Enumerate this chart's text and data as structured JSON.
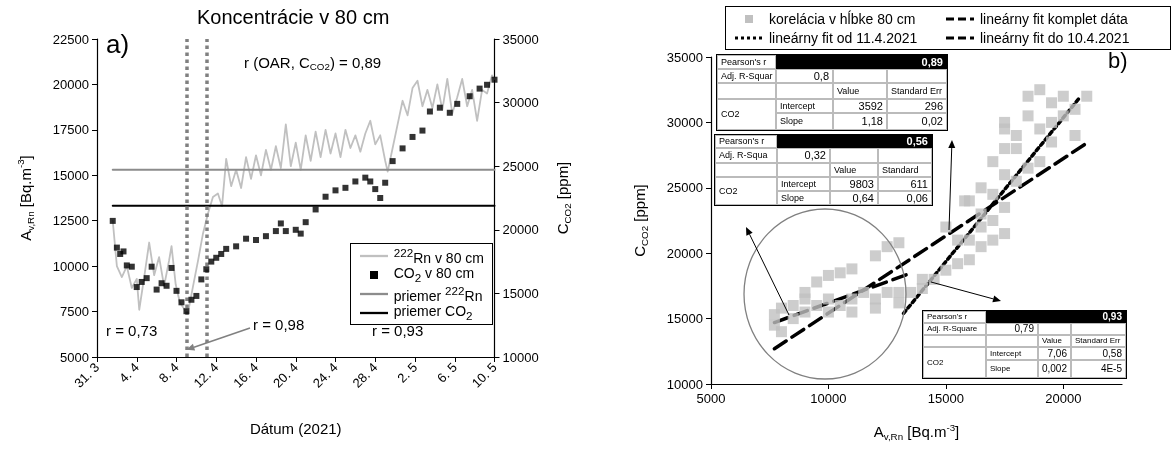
{
  "chart_data": [
    {
      "type": "line",
      "title": "Koncentrácie v 80 cm",
      "xlabel": "Dátum (2021)",
      "ylabel": "A$_{v,Rn}$ [Bq.m$^{-3}$]",
      "y2label": "C$_{CO2}$ [ppm]",
      "xlim": [
        "2021-03-31",
        "2021-05-10"
      ],
      "xticks": [
        {
          "value": "2021-03-31",
          "label": "31. 3"
        },
        {
          "value": "2021-04-04",
          "label": "4. 4"
        },
        {
          "value": "2021-04-08",
          "label": "8. 4"
        },
        {
          "value": "2021-04-12",
          "label": "12. 4"
        },
        {
          "value": "2021-04-16",
          "label": "16. 4"
        },
        {
          "value": "2021-04-20",
          "label": "20. 4"
        },
        {
          "value": "2021-04-24",
          "label": "24. 4"
        },
        {
          "value": "2021-04-28",
          "label": "28. 4"
        },
        {
          "value": "2021-05-02",
          "label": "2. 5"
        },
        {
          "value": "2021-05-06",
          "label": "6. 5"
        },
        {
          "value": "2021-05-10",
          "label": "10. 5"
        }
      ],
      "ylim": [
        5000,
        22500
      ],
      "yticks": [
        5000,
        7500,
        10000,
        12500,
        15000,
        17500,
        20000,
        22500
      ],
      "y2lim": [
        10000,
        35000
      ],
      "y2ticks": [
        10000,
        15000,
        20000,
        25000,
        30000,
        35000
      ],
      "grid": false,
      "legend": "bottom right",
      "ref_lines": [
        {
          "axis": "x",
          "value": "2021-04-09",
          "color": "#808080",
          "line_style": "dotted"
        },
        {
          "axis": "x",
          "value": "2021-04-11",
          "color": "#808080",
          "line_style": "dotted"
        }
      ],
      "annotations": [
        "a)",
        "r (OAR, C$_{CO2}$) = 0,89",
        {
          "text": "r = 0,98",
          "x": "2021-04-09",
          "y": 5400
        },
        "r = 0,73",
        "r = 0,93"
      ],
      "series": [
        {
          "name": "$^{222}$Rn v 80 cm",
          "color": "#c0c0c0",
          "marker": "none",
          "x": [
            "2021-04-01T14:00",
            "2021-04-02T00:00",
            "2021-04-02T12:00",
            "2021-04-03T00:00",
            "2021-04-03T12:00",
            "2021-04-04T00:00",
            "2021-04-04T06:00",
            "2021-04-04T18:00",
            "2021-04-05T06:00",
            "2021-04-05T18:00",
            "2021-04-06T06:00",
            "2021-04-06T18:00",
            "2021-04-07T06:00",
            "2021-04-07T12:00",
            "2021-04-07T22:00",
            "2021-04-08T08:00",
            "2021-04-08T20:00",
            "2021-04-09T06:00",
            "2021-04-09T16:00",
            "2021-04-10T04:00",
            "2021-04-10T16:00",
            "2021-04-11T04:00",
            "2021-04-11T16:00",
            "2021-04-12T04:00",
            "2021-04-12T14:00",
            "2021-04-13T00:00",
            "2021-04-13T12:00",
            "2021-04-14T00:00",
            "2021-04-14T12:00",
            "2021-04-15T00:00",
            "2021-04-15T12:00",
            "2021-04-16T00:00",
            "2021-04-16T12:00",
            "2021-04-17T00:00",
            "2021-04-17T12:00",
            "2021-04-18T00:00",
            "2021-04-18T12:00",
            "2021-04-19T00:00",
            "2021-04-19T12:00",
            "2021-04-20T00:00",
            "2021-04-20T12:00",
            "2021-04-21T00:00",
            "2021-04-21T12:00",
            "2021-04-22T00:00",
            "2021-04-22T12:00",
            "2021-04-23T00:00",
            "2021-04-23T12:00",
            "2021-04-24T00:00",
            "2021-04-24T12:00",
            "2021-04-25T00:00",
            "2021-04-25T12:00",
            "2021-04-26T00:00",
            "2021-04-26T12:00",
            "2021-04-27T00:00",
            "2021-04-27T12:00",
            "2021-04-28T00:00",
            "2021-04-28T12:00",
            "2021-04-29T00:00",
            "2021-04-29T06:00",
            "2021-04-29T18:00",
            "2021-04-30T06:00",
            "2021-04-30T18:00",
            "2021-05-01T06:00",
            "2021-05-01T18:00",
            "2021-05-02T06:00",
            "2021-05-02T18:00",
            "2021-05-03T06:00",
            "2021-05-03T18:00",
            "2021-05-04T06:00",
            "2021-05-04T18:00",
            "2021-05-05T06:00",
            "2021-05-05T18:00",
            "2021-05-06T06:00",
            "2021-05-06T18:00",
            "2021-05-07T06:00",
            "2021-05-07T18:00",
            "2021-05-08T06:00",
            "2021-05-08T18:00",
            "2021-05-09T06:00",
            "2021-05-09T18:00",
            "2021-05-10T00:00"
          ],
          "values": [
            12500,
            10000,
            9400,
            10000,
            8800,
            9300,
            7600,
            9400,
            11300,
            9500,
            10500,
            8900,
            10300,
            11100,
            9000,
            8000,
            7600,
            7700,
            8900,
            10300,
            11800,
            12900,
            13800,
            14000,
            13300,
            15900,
            14400,
            15300,
            14300,
            16000,
            14800,
            16100,
            15000,
            16400,
            15300,
            16600,
            15400,
            17800,
            15500,
            16800,
            15300,
            17200,
            15800,
            17400,
            16000,
            17500,
            16200,
            17300,
            16000,
            17500,
            16500,
            17200,
            16300,
            17300,
            18000,
            16700,
            17200,
            15800,
            15200,
            16500,
            17800,
            19100,
            18300,
            19800,
            20200,
            18800,
            19700,
            18700,
            20000,
            18600,
            20300,
            18400,
            19300,
            20300,
            18800,
            19700,
            18000,
            19700,
            19500,
            20500,
            20300
          ]
        },
        {
          "name": "CO$_{2}$ v 80 cm",
          "type": "scatter",
          "color": "#000000",
          "marker": "square",
          "axis": "y2",
          "x": [
            "2021-04-01T14:00",
            "2021-04-02T00:00",
            "2021-04-02T08:00",
            "2021-04-02T16:00",
            "2021-04-03T00:00",
            "2021-04-03T12:00",
            "2021-04-04T00:00",
            "2021-04-04T12:00",
            "2021-04-05T00:00",
            "2021-04-05T12:00",
            "2021-04-06T00:00",
            "2021-04-06T12:00",
            "2021-04-07T00:00",
            "2021-04-07T12:00",
            "2021-04-08T00:00",
            "2021-04-08T12:00",
            "2021-04-09T00:00",
            "2021-04-09T12:00",
            "2021-04-10T00:00",
            "2021-04-10T12:00",
            "2021-04-11T00:00",
            "2021-04-11T12:00",
            "2021-04-12T00:00",
            "2021-04-12T12:00",
            "2021-04-13T00:00",
            "2021-04-14T00:00",
            "2021-04-15T00:00",
            "2021-04-16T00:00",
            "2021-04-17T00:00",
            "2021-04-18T00:00",
            "2021-04-18T12:00",
            "2021-04-19T00:00",
            "2021-04-20T00:00",
            "2021-04-20T12:00",
            "2021-04-21T00:00",
            "2021-04-22T00:00",
            "2021-04-23T00:00",
            "2021-04-24T00:00",
            "2021-04-25T00:00",
            "2021-04-26T00:00",
            "2021-04-27T00:00",
            "2021-04-27T12:00",
            "2021-04-28T00:00",
            "2021-04-28T12:00",
            "2021-04-29T00:00",
            "2021-04-29T18:00",
            "2021-04-30T18:00",
            "2021-05-01T18:00",
            "2021-05-02T18:00",
            "2021-05-03T12:00",
            "2021-05-04T12:00",
            "2021-05-05T12:00",
            "2021-05-06T06:00",
            "2021-05-07T12:00",
            "2021-05-08T12:00",
            "2021-05-09T06:00",
            "2021-05-10T00:00"
          ],
          "values": [
            20700,
            18600,
            18100,
            18300,
            17200,
            17100,
            15500,
            15900,
            16200,
            17100,
            15300,
            15800,
            15600,
            17000,
            15200,
            14300,
            13600,
            14500,
            14800,
            16100,
            16900,
            17500,
            17800,
            18100,
            18500,
            18700,
            19300,
            19200,
            19500,
            19900,
            20500,
            19900,
            20000,
            19700,
            20600,
            21600,
            22600,
            23100,
            23300,
            23800,
            24100,
            23800,
            23200,
            22500,
            23700,
            25400,
            26400,
            27300,
            27800,
            29300,
            29600,
            29200,
            29900,
            30500,
            31100,
            31400,
            31800
          ]
        },
        {
          "name": "priemer $^{222}$Rn",
          "color": "#8c8c8c",
          "marker": "none",
          "x": [
            "2021-04-01T14:00",
            "2021-05-10"
          ],
          "values": [
            15300,
            15300
          ]
        },
        {
          "name": "priemer CO$_{2}$",
          "color": "#000000",
          "marker": "none",
          "axis": "y2",
          "x": [
            "2021-04-01T14:00",
            "2021-05-10"
          ],
          "values": [
            21900,
            21900
          ]
        }
      ]
    },
    {
      "type": "scatter",
      "xlabel": "A$_{v,Rn}$ [Bq.m$^{-3}$]",
      "ylabel": "C$_{CO2}$ [ppm]",
      "xlim": [
        5000,
        22500
      ],
      "xticks": [
        5000,
        10000,
        15000,
        20000
      ],
      "ylim": [
        10000,
        35000
      ],
      "yticks": [
        10000,
        15000,
        20000,
        25000,
        30000,
        35000
      ],
      "grid": false,
      "legend": "top",
      "marker": "square",
      "annotations": [
        "b)",
        "Pearson's r",
        "0,89",
        "Adj. R-Squar",
        "0,8",
        "Value",
        "Standard Err",
        "CO2",
        "Intercept",
        "3592",
        "296",
        "Slope",
        "1,18",
        "0,02",
        "Pearson's r",
        "0,56",
        "Adj. R-Squa",
        "0,32",
        "Value",
        "Standard",
        "CO2",
        "Intercept",
        "9803",
        "611",
        "Slope",
        "0,64",
        "0,06",
        "Pearson's r",
        "0,93",
        "Adj. R-Square",
        "0,79",
        "Value",
        "Standard Err",
        "CO2",
        "Intercept",
        "7,06",
        "0,58",
        "Slope",
        "0,002",
        "4E-5"
      ],
      "series": [
        {
          "name": "korelácia v hĺbke 80 cm",
          "color": "#c0c0c0",
          "x": [
            7700,
            7700,
            8000,
            8500,
            9000,
            9500,
            9000,
            9500,
            10000,
            10500,
            11000,
            12000,
            12500,
            13000,
            10000,
            10500,
            11000,
            11500,
            12000,
            12500,
            13000,
            13500,
            9000,
            10000,
            8000,
            8500,
            11000,
            12000,
            13000,
            14000,
            14500,
            15000,
            15500,
            16000,
            16500,
            17000,
            17500,
            16000,
            16500,
            17000,
            17500,
            16500,
            15500,
            14000,
            16000,
            16500,
            17000,
            17500,
            17000,
            18000,
            18500,
            19000,
            17500,
            18000,
            19000,
            19500,
            20000,
            20500,
            21000,
            20000,
            18500,
            17500,
            18000,
            19500,
            20500,
            18500,
            19000,
            19500,
            17500,
            15800,
            15000
          ],
          "values": [
            14500,
            15300,
            14000,
            15000,
            15500,
            16000,
            17000,
            17800,
            18300,
            18500,
            18800,
            19800,
            20500,
            20800,
            16500,
            16000,
            16500,
            17000,
            16500,
            17000,
            17000,
            17000,
            16500,
            15500,
            15800,
            16000,
            15500,
            15800,
            16200,
            17300,
            18000,
            18700,
            19200,
            19500,
            20500,
            21000,
            21500,
            21000,
            22000,
            22500,
            23500,
            23000,
            21000,
            18000,
            24000,
            25000,
            24500,
            26000,
            27000,
            25500,
            26500,
            27000,
            28000,
            29000,
            29500,
            30000,
            30500,
            31000,
            32000,
            32000,
            30500,
            30000,
            28000,
            28500,
            29000,
            32000,
            32500,
            31500,
            29500,
            24000,
            22000
          ]
        },
        {
          "name": "lineárny fit komplet dáta",
          "type": "line",
          "color": "#000000",
          "marker": "none",
          "line_style": "dashed",
          "x": [
            7700,
            20900
          ],
          "values": [
            12700,
            28300
          ]
        },
        {
          "name": "lineárny fit od 11.4.2021",
          "type": "line",
          "color": "#000000",
          "marker": "none",
          "line_style": "dotted",
          "x": [
            13200,
            20700
          ],
          "values": [
            15400,
            31900
          ]
        },
        {
          "name": "lineárny fit do 10.4.2021",
          "type": "line",
          "color": "#000000",
          "marker": "none",
          "line_style": "dashed",
          "x": [
            7700,
            13400
          ],
          "values": [
            14700,
            18400
          ]
        }
      ]
    }
  ]
}
